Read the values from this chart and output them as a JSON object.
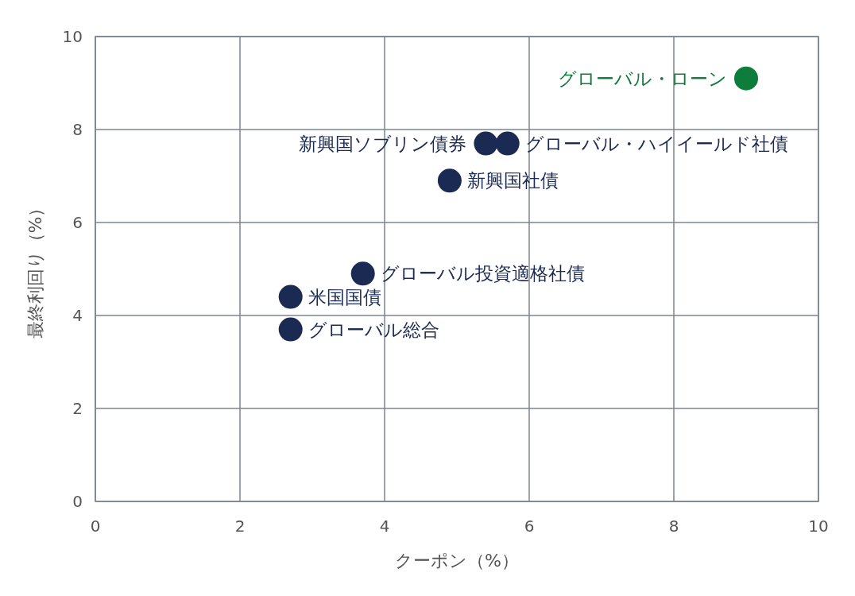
{
  "chart_data": {
    "type": "scatter",
    "xlabel": "クーポン（%）",
    "ylabel": "最終利回り（%）",
    "xlim": [
      0,
      10
    ],
    "ylim": [
      0,
      10
    ],
    "xticks": [
      0,
      2,
      4,
      6,
      8,
      10
    ],
    "yticks": [
      0,
      2,
      4,
      6,
      8,
      10
    ],
    "grid": true,
    "marker": "circle",
    "series": [
      {
        "name": "グローバル・ローン",
        "color": "#0e7c3a",
        "x": [
          9.0
        ],
        "values": [
          9.1
        ]
      },
      {
        "name": "新興国ソブリン債券",
        "color": "#1a2a52",
        "x": [
          5.4
        ],
        "values": [
          7.7
        ]
      },
      {
        "name": "グローバル・ハイイールド社債",
        "color": "#1a2a52",
        "x": [
          5.7
        ],
        "values": [
          7.7
        ]
      },
      {
        "name": "新興国社債",
        "color": "#1a2a52",
        "x": [
          4.9
        ],
        "values": [
          6.9
        ]
      },
      {
        "name": "グローバル投資適格社債",
        "color": "#1a2a52",
        "x": [
          3.7
        ],
        "values": [
          4.9
        ]
      },
      {
        "name": "米国国債",
        "color": "#1a2a52",
        "x": [
          2.7
        ],
        "values": [
          4.4
        ]
      },
      {
        "name": "グローバル総合",
        "color": "#1a2a52",
        "x": [
          2.7
        ],
        "values": [
          3.7
        ]
      }
    ]
  }
}
